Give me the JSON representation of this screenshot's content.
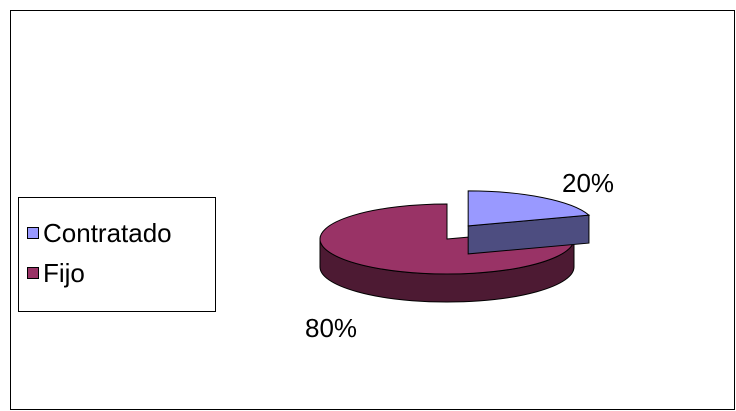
{
  "chart_data": {
    "type": "pie",
    "style": "3d-exploded",
    "categories": [
      "Contratado",
      "Fijo"
    ],
    "values": [
      20,
      80
    ],
    "labels": [
      "20%",
      "80%"
    ],
    "colors": {
      "Contratado": {
        "top": "#9999ff",
        "side": "#4d4d80"
      },
      "Fijo": {
        "top": "#993366",
        "side": "#4d1a33"
      }
    },
    "legend_position": "left"
  }
}
